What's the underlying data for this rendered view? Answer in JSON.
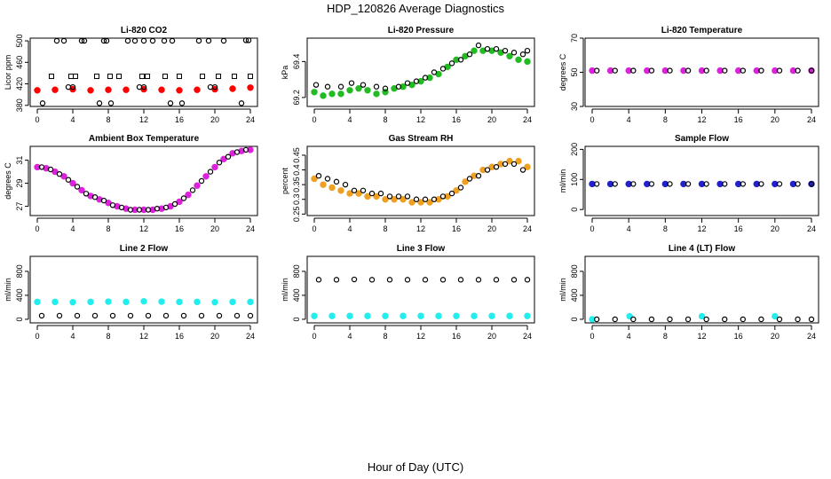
{
  "figure": {
    "title": "HDP_120826  Average Diagnostics",
    "xlabel": "Hour of Day (UTC)"
  },
  "chart_data": [
    {
      "type": "scatter",
      "title": "Li-820 CO2",
      "ylabel": "Licor ppm",
      "xlim": [
        0,
        24
      ],
      "ylim": [
        378,
        505
      ],
      "xticks": [
        0,
        4,
        8,
        12,
        16,
        20,
        24
      ],
      "yticks": [
        380,
        420,
        460,
        500
      ],
      "grid": false,
      "series": [
        {
          "color": "#ff0000",
          "marker": "filled-circle",
          "x": [
            0,
            2,
            4,
            6,
            8,
            10,
            12,
            14,
            16,
            18,
            20,
            22,
            24
          ],
          "y": [
            408,
            409,
            410,
            408,
            409,
            409,
            410,
            409,
            408,
            409,
            410,
            411,
            413
          ]
        },
        {
          "color": "#000000",
          "marker": "circle",
          "x": [
            2.2,
            3,
            5,
            5.3,
            7.5,
            7.8,
            10.2,
            11,
            12,
            13,
            14.3,
            15.2,
            18.2,
            19.3,
            21,
            23.5,
            23.8
          ],
          "y": [
            500,
            500,
            500,
            500,
            500,
            500,
            500,
            500,
            500,
            500,
            500,
            500,
            500,
            500,
            500,
            501,
            501
          ]
        },
        {
          "color": "#000000",
          "marker": "circle",
          "x": [
            0.6,
            3.5,
            4,
            7,
            8.3,
            11.5,
            12,
            15,
            16.3,
            19.5,
            20,
            23
          ],
          "y": [
            384,
            414,
            414,
            384,
            384,
            414,
            414,
            384,
            384,
            414,
            414,
            384
          ]
        },
        {
          "color": "#000000",
          "marker": "square",
          "x": [
            1.6,
            3.8,
            4.3,
            6.7,
            8.2,
            9.2,
            11.8,
            12.4,
            14.4,
            16,
            18.6,
            20.4,
            22.2,
            24
          ],
          "y": [
            434,
            434,
            434,
            434,
            434,
            434,
            434,
            434,
            434,
            434,
            434,
            434,
            434,
            434
          ]
        }
      ]
    },
    {
      "type": "scatter",
      "title": "Li-820 Pressure",
      "ylabel": "kPa",
      "xlim": [
        0,
        24
      ],
      "ylim": [
        69.15,
        69.53
      ],
      "xticks": [
        0,
        4,
        8,
        12,
        16,
        20,
        24
      ],
      "yticks": [
        69.2,
        69.4
      ],
      "grid": false,
      "series": [
        {
          "color": "#22bb22",
          "marker": "filled-circle",
          "x": [
            0,
            1,
            2,
            3,
            4,
            5,
            6,
            7,
            8,
            9,
            10,
            11,
            12,
            13,
            14,
            15,
            16,
            17,
            18,
            19,
            20,
            21,
            22,
            23,
            24
          ],
          "y": [
            69.23,
            69.21,
            69.22,
            69.22,
            69.24,
            69.25,
            69.24,
            69.22,
            69.23,
            69.25,
            69.26,
            69.27,
            69.29,
            69.31,
            69.33,
            69.37,
            69.41,
            69.43,
            69.46,
            69.46,
            69.46,
            69.45,
            69.43,
            69.41,
            69.4
          ]
        },
        {
          "color": "#000000",
          "marker": "circle",
          "x": [
            0.2,
            1.5,
            3,
            4.2,
            5.5,
            7,
            8,
            9.5,
            10.5,
            11.5,
            12.5,
            13.5,
            14.5,
            15.5,
            16.5,
            17.5,
            18.5,
            19.5,
            20.5,
            21.5,
            22.5,
            23.5,
            24
          ],
          "y": [
            69.27,
            69.26,
            69.26,
            69.28,
            69.27,
            69.26,
            69.25,
            69.26,
            69.28,
            69.29,
            69.31,
            69.34,
            69.36,
            69.39,
            69.41,
            69.44,
            69.49,
            69.47,
            69.47,
            69.46,
            69.45,
            69.44,
            69.46
          ]
        }
      ]
    },
    {
      "type": "scatter",
      "title": "Li-820 Temperature",
      "ylabel": "degrees C",
      "xlim": [
        0,
        24
      ],
      "ylim": [
        30,
        70
      ],
      "xticks": [
        0,
        4,
        8,
        12,
        16,
        20,
        24
      ],
      "yticks": [
        30,
        50,
        70
      ],
      "grid": false,
      "series": [
        {
          "color": "#dd22dd",
          "marker": "filled-circle",
          "x": [
            0,
            2,
            4,
            6,
            8,
            10,
            12,
            14,
            16,
            18,
            20,
            22,
            24
          ],
          "y": [
            51,
            51,
            51,
            51,
            51,
            51,
            51,
            51,
            51,
            51,
            51,
            51,
            51
          ]
        },
        {
          "color": "#000000",
          "marker": "circle",
          "x": [
            0.5,
            2.5,
            4.5,
            6.5,
            8.5,
            10.5,
            12.5,
            14.5,
            16.5,
            18.5,
            20.5,
            22.5,
            24
          ],
          "y": [
            51,
            51,
            51,
            51,
            51,
            51,
            51,
            51,
            51,
            51,
            51,
            51,
            51
          ]
        }
      ]
    },
    {
      "type": "scatter",
      "title": "Ambient Box Temperature",
      "ylabel": "degrees C",
      "xlim": [
        0,
        24
      ],
      "ylim": [
        26.2,
        32.2
      ],
      "xticks": [
        0,
        4,
        8,
        12,
        16,
        20,
        24
      ],
      "yticks": [
        27,
        29,
        31
      ],
      "grid": false,
      "series": [
        {
          "color": "#dd22dd",
          "marker": "filled-circle",
          "x": [
            0,
            1,
            2,
            3,
            4,
            5,
            6,
            7,
            8,
            9,
            10,
            11,
            12,
            13,
            14,
            15,
            16,
            17,
            18,
            19,
            20,
            21,
            22,
            23,
            24
          ],
          "y": [
            30.4,
            30.3,
            30.0,
            29.6,
            29.0,
            28.4,
            27.9,
            27.6,
            27.3,
            27.0,
            26.8,
            26.7,
            26.7,
            26.7,
            26.8,
            27.0,
            27.4,
            28.0,
            28.8,
            29.6,
            30.4,
            31.1,
            31.6,
            31.8,
            31.9
          ]
        },
        {
          "color": "#000000",
          "marker": "circle",
          "x": [
            0.5,
            1.5,
            2.5,
            3.5,
            4.5,
            5.5,
            6.5,
            7.5,
            8.5,
            9.5,
            10.5,
            11.5,
            12.5,
            13.5,
            14.5,
            15.5,
            16.5,
            17.5,
            18.5,
            19.5,
            20.5,
            21.5,
            22.5,
            23.5
          ],
          "y": [
            30.4,
            30.2,
            29.8,
            29.3,
            28.7,
            28.1,
            27.8,
            27.5,
            27.1,
            26.9,
            26.7,
            26.7,
            26.7,
            26.8,
            26.9,
            27.2,
            27.7,
            28.4,
            29.2,
            30.0,
            30.8,
            31.3,
            31.7,
            31.9
          ]
        }
      ]
    },
    {
      "type": "scatter",
      "title": "Gas Stream RH",
      "ylabel": "percent",
      "xlim": [
        0,
        24
      ],
      "ylim": [
        0.245,
        0.48
      ],
      "xticks": [
        0,
        4,
        8,
        12,
        16,
        20,
        24
      ],
      "yticks": [
        0.25,
        0.3,
        0.35,
        0.4,
        0.45
      ],
      "grid": false,
      "series": [
        {
          "color": "#f0a020",
          "marker": "filled-circle",
          "x": [
            0,
            1,
            2,
            3,
            4,
            5,
            6,
            7,
            8,
            9,
            10,
            11,
            12,
            13,
            14,
            15,
            16,
            17,
            18,
            19,
            20,
            21,
            22,
            23,
            24
          ],
          "y": [
            0.37,
            0.35,
            0.34,
            0.33,
            0.32,
            0.32,
            0.31,
            0.31,
            0.3,
            0.3,
            0.3,
            0.29,
            0.29,
            0.29,
            0.3,
            0.31,
            0.33,
            0.36,
            0.38,
            0.4,
            0.41,
            0.42,
            0.43,
            0.43,
            0.41
          ]
        },
        {
          "color": "#000000",
          "marker": "circle",
          "x": [
            0.5,
            1.5,
            2.5,
            3.5,
            4.5,
            5.5,
            6.5,
            7.5,
            8.5,
            9.5,
            10.5,
            11.5,
            12.5,
            13.5,
            14.5,
            15.5,
            16.5,
            17.5,
            18.5,
            19.5,
            20.5,
            21.5,
            22.5,
            23.5
          ],
          "y": [
            0.38,
            0.37,
            0.36,
            0.35,
            0.33,
            0.33,
            0.32,
            0.32,
            0.31,
            0.31,
            0.31,
            0.3,
            0.3,
            0.3,
            0.31,
            0.32,
            0.34,
            0.37,
            0.38,
            0.4,
            0.41,
            0.42,
            0.42,
            0.4
          ]
        }
      ]
    },
    {
      "type": "scatter",
      "title": "Sample Flow",
      "ylabel": "ml/min",
      "xlim": [
        0,
        24
      ],
      "ylim": [
        -20,
        210
      ],
      "xticks": [
        0,
        4,
        8,
        12,
        16,
        20,
        24
      ],
      "yticks": [
        0,
        100,
        200
      ],
      "grid": false,
      "series": [
        {
          "color": "#2222cc",
          "marker": "filled-circle",
          "x": [
            0,
            2,
            4,
            6,
            8,
            10,
            12,
            14,
            16,
            18,
            20,
            22,
            24
          ],
          "y": [
            85,
            85,
            85,
            85,
            85,
            85,
            85,
            85,
            85,
            85,
            85,
            85,
            85
          ]
        },
        {
          "color": "#000000",
          "marker": "circle",
          "x": [
            0.5,
            2.5,
            4.5,
            6.5,
            8.5,
            10.5,
            12.5,
            14.5,
            16.5,
            18.5,
            20.5,
            22.5,
            24
          ],
          "y": [
            85,
            85,
            85,
            85,
            85,
            85,
            85,
            85,
            85,
            85,
            85,
            85,
            85
          ]
        }
      ]
    },
    {
      "type": "scatter",
      "title": "Line 2 Flow",
      "ylabel": "ml/min",
      "xlim": [
        0,
        24
      ],
      "ylim": [
        -60,
        1050
      ],
      "xticks": [
        0,
        4,
        8,
        12,
        16,
        20,
        24
      ],
      "yticks": [
        0,
        400,
        800
      ],
      "grid": false,
      "series": [
        {
          "color": "#22eeee",
          "marker": "filled-circle",
          "x": [
            0,
            2,
            4,
            6,
            8,
            10,
            12,
            14,
            16,
            18,
            20,
            22,
            24
          ],
          "y": [
            290,
            290,
            285,
            290,
            295,
            290,
            300,
            295,
            290,
            290,
            285,
            290,
            290
          ]
        },
        {
          "color": "#000000",
          "marker": "circle",
          "x": [
            0.5,
            2.5,
            4.5,
            6.5,
            8.5,
            10.5,
            12.5,
            14.5,
            16.5,
            18.5,
            20.5,
            22.5,
            24
          ],
          "y": [
            60,
            60,
            60,
            60,
            60,
            60,
            60,
            60,
            60,
            60,
            60,
            60,
            60
          ]
        }
      ]
    },
    {
      "type": "scatter",
      "title": "Line 3 Flow",
      "ylabel": "ml/min",
      "xlim": [
        0,
        24
      ],
      "ylim": [
        -60,
        1050
      ],
      "xticks": [
        0,
        4,
        8,
        12,
        16,
        20,
        24
      ],
      "yticks": [
        0,
        400,
        800
      ],
      "grid": false,
      "series": [
        {
          "color": "#22eeee",
          "marker": "filled-circle",
          "x": [
            0,
            2,
            4,
            6,
            8,
            10,
            12,
            14,
            16,
            18,
            20,
            22,
            24
          ],
          "y": [
            55,
            55,
            55,
            55,
            55,
            55,
            55,
            55,
            55,
            55,
            55,
            55,
            55
          ]
        },
        {
          "color": "#000000",
          "marker": "circle",
          "x": [
            0.5,
            2.5,
            4.5,
            6.5,
            8.5,
            10.5,
            12.5,
            14.5,
            16.5,
            18.5,
            20.5,
            22.5,
            24
          ],
          "y": [
            660,
            660,
            665,
            660,
            660,
            660,
            660,
            660,
            660,
            660,
            660,
            660,
            660
          ]
        }
      ]
    },
    {
      "type": "scatter",
      "title": "Line 4 (LT) Flow",
      "ylabel": "ml/min",
      "xlim": [
        0,
        24
      ],
      "ylim": [
        -60,
        1050
      ],
      "xticks": [
        0,
        4,
        8,
        12,
        16,
        20,
        24
      ],
      "yticks": [
        0,
        400,
        800
      ],
      "grid": false,
      "series": [
        {
          "color": "#22eeee",
          "marker": "filled-circle",
          "x": [
            0,
            4.1,
            12,
            20
          ],
          "y": [
            0,
            50,
            50,
            50
          ]
        },
        {
          "color": "#000000",
          "marker": "circle",
          "x": [
            0.5,
            2.5,
            4.5,
            6.5,
            8.5,
            10.5,
            12.5,
            14.5,
            16.5,
            18.5,
            20.5,
            22.5,
            24
          ],
          "y": [
            0,
            0,
            0,
            0,
            0,
            0,
            0,
            0,
            0,
            0,
            0,
            0,
            0
          ]
        }
      ]
    }
  ]
}
